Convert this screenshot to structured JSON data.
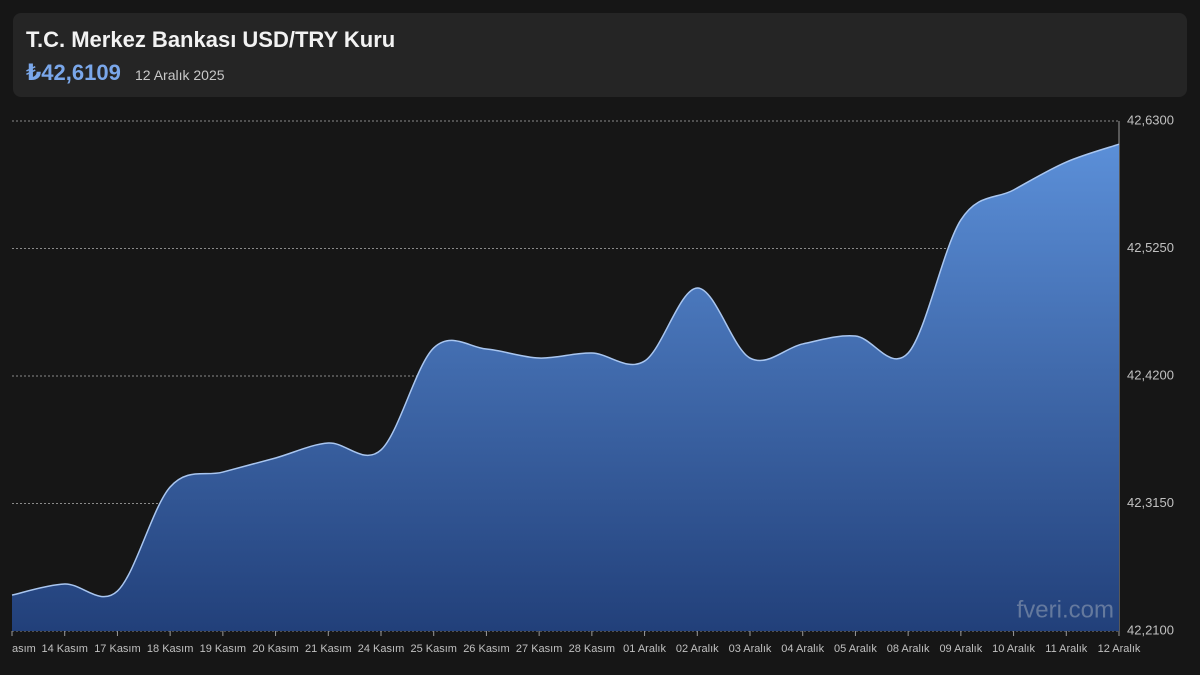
{
  "header": {
    "title": "T.C. Merkez Bankası USD/TRY Kuru",
    "value": "₺42,6109",
    "date": "12 Aralık 2025"
  },
  "chart_data": {
    "type": "area",
    "categories": [
      "asım",
      "14 Kasım",
      "17 Kasım",
      "18 Kasım",
      "19 Kasım",
      "20 Kasım",
      "21 Kasım",
      "24 Kasım",
      "25 Kasım",
      "26 Kasım",
      "27 Kasım",
      "28 Kasım",
      "01 Aralık",
      "02 Aralık",
      "03 Aralık",
      "04 Aralık",
      "05 Aralık",
      "08 Aralık",
      "09 Aralık",
      "10 Aralık",
      "11 Aralık",
      "12 Aralık"
    ],
    "values": [
      42.2396,
      42.2487,
      42.2429,
      42.3286,
      42.3409,
      42.3525,
      42.3648,
      42.3591,
      42.4431,
      42.4422,
      42.4348,
      42.4389,
      42.4323,
      42.4925,
      42.4348,
      42.4464,
      42.4529,
      42.4389,
      42.5485,
      42.5732,
      42.5962,
      42.6109
    ],
    "color": "#5b8fd8",
    "ylim": [
      42.21,
      42.63
    ],
    "yticks": [
      {
        "value": 42.21,
        "label": "42,2100"
      },
      {
        "value": 42.315,
        "label": "42,3150"
      },
      {
        "value": 42.42,
        "label": "42,4200"
      },
      {
        "value": 42.525,
        "label": "42,5250"
      },
      {
        "value": 42.63,
        "label": "42,6300"
      }
    ],
    "grid": true,
    "watermark": "fveri.com"
  }
}
